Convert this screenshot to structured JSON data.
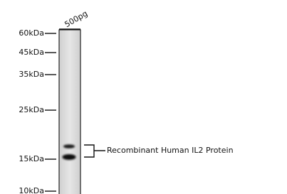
{
  "lane_label": "500pg",
  "markers": [
    "60kDa",
    "45kDa",
    "35kDa",
    "25kDa",
    "15kDa",
    "10kDa"
  ],
  "annotation": "Recombinant Human IL2 Protein"
}
